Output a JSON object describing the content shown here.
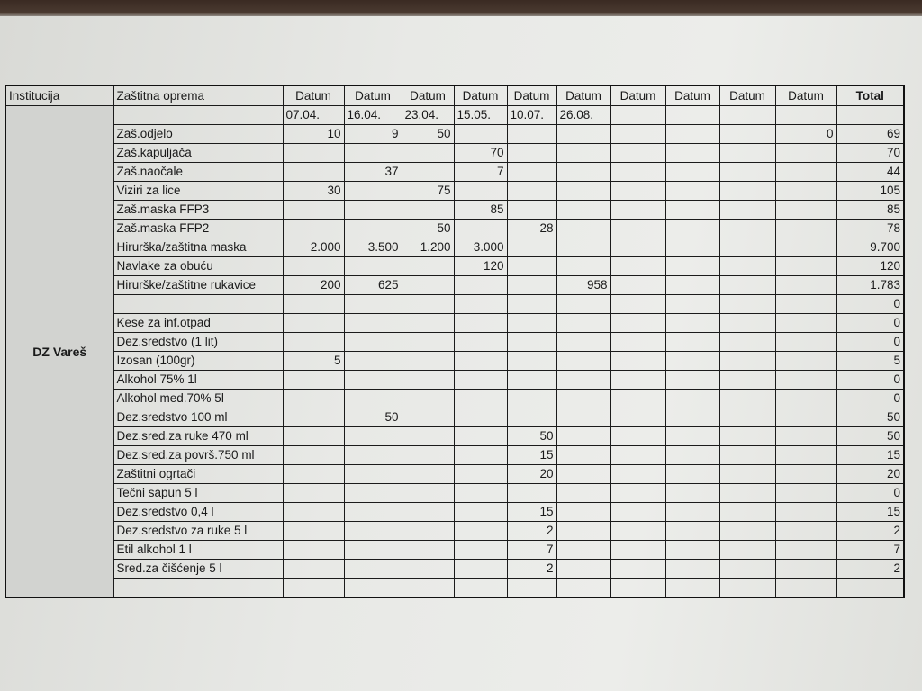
{
  "header": {
    "institution_label": "Institucija",
    "equipment_label": "Zaštitna oprema",
    "date_labels": [
      "Datum",
      "Datum",
      "Datum",
      "Datum",
      "Datum",
      "Datum",
      "Datum",
      "Datum",
      "Datum",
      "Datum"
    ],
    "total_label": "Total",
    "dates": [
      "07.04.",
      "16.04.",
      "23.04.",
      "15.05.",
      "10.07.",
      "26.08.",
      "",
      "",
      "",
      ""
    ]
  },
  "institution": "DZ Vareš",
  "rows": [
    {
      "item": "Zaš.odjelo",
      "values": [
        "10",
        "9",
        "50",
        "",
        "",
        "",
        "",
        "",
        "",
        "0"
      ],
      "total": "69"
    },
    {
      "item": "Zaš.kapuljača",
      "values": [
        "",
        "",
        "",
        "70",
        "",
        "",
        "",
        "",
        "",
        ""
      ],
      "total": "70"
    },
    {
      "item": "Zaš.naočale",
      "values": [
        "",
        "37",
        "",
        "7",
        "",
        "",
        "",
        "",
        "",
        ""
      ],
      "total": "44"
    },
    {
      "item": "Viziri za lice",
      "values": [
        "30",
        "",
        "75",
        "",
        "",
        "",
        "",
        "",
        "",
        ""
      ],
      "total": "105"
    },
    {
      "item": "Zaš.maska FFP3",
      "values": [
        "",
        "",
        "",
        "85",
        "",
        "",
        "",
        "",
        "",
        ""
      ],
      "total": "85"
    },
    {
      "item": "Zaš.maska FFP2",
      "values": [
        "",
        "",
        "50",
        "",
        "28",
        "",
        "",
        "",
        "",
        ""
      ],
      "total": "78"
    },
    {
      "item": "Hirurška/zaštitna maska",
      "values": [
        "2.000",
        "3.500",
        "1.200",
        "3.000",
        "",
        "",
        "",
        "",
        "",
        ""
      ],
      "total": "9.700"
    },
    {
      "item": "Navlake za obuću",
      "values": [
        "",
        "",
        "",
        "120",
        "",
        "",
        "",
        "",
        "",
        ""
      ],
      "total": "120"
    },
    {
      "item": "Hirurške/zaštitne rukavice",
      "values": [
        "200",
        "625",
        "",
        "",
        "",
        "958",
        "",
        "",
        "",
        ""
      ],
      "total": "1.783"
    },
    {
      "item": "",
      "values": [
        "",
        "",
        "",
        "",
        "",
        "",
        "",
        "",
        "",
        ""
      ],
      "total": "0"
    },
    {
      "item": "Kese za inf.otpad",
      "values": [
        "",
        "",
        "",
        "",
        "",
        "",
        "",
        "",
        "",
        ""
      ],
      "total": "0"
    },
    {
      "item": "Dez.sredstvo (1 lit)",
      "values": [
        "",
        "",
        "",
        "",
        "",
        "",
        "",
        "",
        "",
        ""
      ],
      "total": "0"
    },
    {
      "item": "Izosan (100gr)",
      "values": [
        "5",
        "",
        "",
        "",
        "",
        "",
        "",
        "",
        "",
        ""
      ],
      "total": "5"
    },
    {
      "item": "Alkohol 75% 1l",
      "values": [
        "",
        "",
        "",
        "",
        "",
        "",
        "",
        "",
        "",
        ""
      ],
      "total": "0"
    },
    {
      "item": "Alkohol med.70%  5l",
      "values": [
        "",
        "",
        "",
        "",
        "",
        "",
        "",
        "",
        "",
        ""
      ],
      "total": "0"
    },
    {
      "item": "Dez.sredstvo 100 ml",
      "values": [
        "",
        "50",
        "",
        "",
        "",
        "",
        "",
        "",
        "",
        ""
      ],
      "total": "50"
    },
    {
      "item": "Dez.sred.za ruke 470 ml",
      "values": [
        "",
        "",
        "",
        "",
        "50",
        "",
        "",
        "",
        "",
        ""
      ],
      "total": "50"
    },
    {
      "item": "Dez.sred.za površ.750 ml",
      "values": [
        "",
        "",
        "",
        "",
        "15",
        "",
        "",
        "",
        "",
        ""
      ],
      "total": "15"
    },
    {
      "item": "Zaštitni ogrtači",
      "values": [
        "",
        "",
        "",
        "",
        "20",
        "",
        "",
        "",
        "",
        ""
      ],
      "total": "20"
    },
    {
      "item": "Tečni sapun 5 l",
      "values": [
        "",
        "",
        "",
        "",
        "",
        "",
        "",
        "",
        "",
        ""
      ],
      "total": "0"
    },
    {
      "item": "Dez.sredstvo 0,4 l",
      "values": [
        "",
        "",
        "",
        "",
        "15",
        "",
        "",
        "",
        "",
        ""
      ],
      "total": "15"
    },
    {
      "item": "Dez.sredstvo za ruke 5 l",
      "values": [
        "",
        "",
        "",
        "",
        "2",
        "",
        "",
        "",
        "",
        ""
      ],
      "total": "2"
    },
    {
      "item": "Etil alkohol 1 l",
      "values": [
        "",
        "",
        "",
        "",
        "7",
        "",
        "",
        "",
        "",
        ""
      ],
      "total": "7"
    },
    {
      "item": "Sred.za čišćenje 5 l",
      "values": [
        "",
        "",
        "",
        "",
        "2",
        "",
        "",
        "",
        "",
        ""
      ],
      "total": "2"
    },
    {
      "item": "",
      "values": [
        "",
        "",
        "",
        "",
        "",
        "",
        "",
        "",
        "",
        ""
      ],
      "total": ""
    }
  ]
}
